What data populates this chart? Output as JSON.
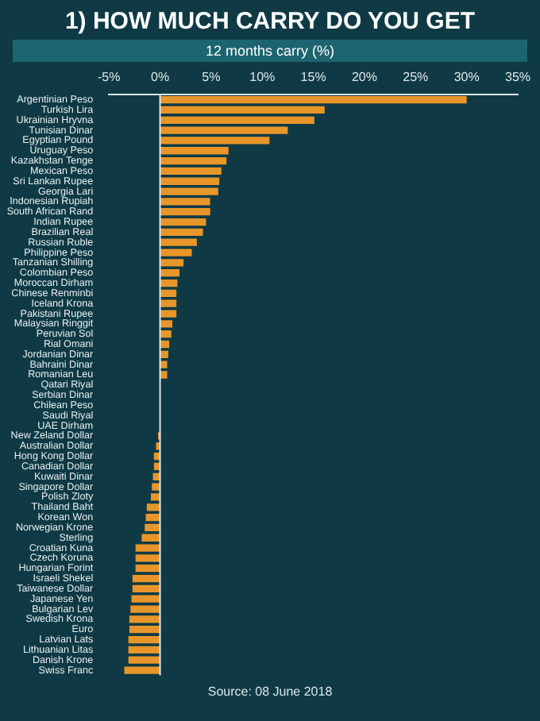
{
  "chart_data": {
    "type": "bar",
    "orientation": "horizontal",
    "title": "1) HOW MUCH CARRY DO YOU GET",
    "subtitle": "12 months carry (%)",
    "annotations": [
      "Source: 08 June 2018"
    ],
    "categories": [
      "Argentinian Peso",
      "Turkish Lira",
      "Ukrainian Hryvna",
      "Tunisian Dinar",
      "Egyptian Pound",
      "Uruguay Peso",
      "Kazakhstan Tenge",
      "Mexican Peso",
      "Sri Lankan Rupee",
      "Georgia Lari",
      "Indonesian Rupiah",
      "South African Rand",
      "Indian Rupee",
      "Brazilian Real",
      "Russian Ruble",
      "Philippine Peso",
      "Tanzanian Shilling",
      "Colombian Peso",
      "Moroccan Dirham",
      "Chinese Renminbi",
      "Iceland Krona",
      "Pakistani Rupee",
      "Malaysian Ringgit",
      "Peruvian Sol",
      "Rial Omani",
      "Jordanian Dinar",
      "Bahraini Dinar",
      "Romanian Leu",
      "Qatari Riyal",
      "Serbian Dinar",
      "Chilean Peso",
      "Saudi Riyal",
      "UAE Dirham",
      "New Zeland Dollar",
      "Australian Dollar",
      "Hong Kong Dollar",
      "Canadian Dollar",
      "Kuwaiti Dinar",
      "Singapore Dollar",
      "Polish Zloty",
      "Thailand Baht",
      "Korean Won",
      "Norwegian Krone",
      "Sterling",
      "Croatian Kuna",
      "Czech Koruna",
      "Hungarian Forint",
      "Israeli Shekel",
      "Taiwanese Dollar",
      "Japanese Yen",
      "Bulgarian Lev",
      "Swedish Krona",
      "Euro",
      "Latvian Lats",
      "Lithuanian Litas",
      "Danish Krone",
      "Swiss Franc"
    ],
    "values": [
      30.0,
      16.1,
      15.1,
      12.5,
      10.7,
      6.7,
      6.5,
      6.0,
      5.8,
      5.7,
      4.9,
      4.9,
      4.5,
      4.2,
      3.6,
      3.1,
      2.3,
      1.9,
      1.7,
      1.6,
      1.6,
      1.6,
      1.2,
      1.1,
      0.9,
      0.8,
      0.7,
      0.7,
      0,
      0,
      0,
      0,
      0,
      -0.2,
      -0.4,
      -0.6,
      -0.6,
      -0.7,
      -0.8,
      -0.9,
      -1.3,
      -1.4,
      -1.5,
      -1.8,
      -2.4,
      -2.4,
      -2.4,
      -2.7,
      -2.7,
      -2.8,
      -2.9,
      -3.0,
      -3.0,
      -3.1,
      -3.1,
      -3.1,
      -3.5
    ],
    "color": "#e8962a",
    "xlim": [
      -5,
      35
    ],
    "xticks": [
      {
        "value": -5,
        "label": "-5%"
      },
      {
        "value": 0,
        "label": "0%"
      },
      {
        "value": 5,
        "label": "5%"
      },
      {
        "value": 10,
        "label": "10%"
      },
      {
        "value": 15,
        "label": "15%"
      },
      {
        "value": 20,
        "label": "20%"
      },
      {
        "value": 25,
        "label": "25%"
      },
      {
        "value": 30,
        "label": "30%"
      },
      {
        "value": 35,
        "label": "35%"
      }
    ],
    "ref_lines": [
      {
        "axis": "x",
        "value": 0,
        "color": "#dce6e8"
      }
    ],
    "grid": false,
    "legend": false
  }
}
